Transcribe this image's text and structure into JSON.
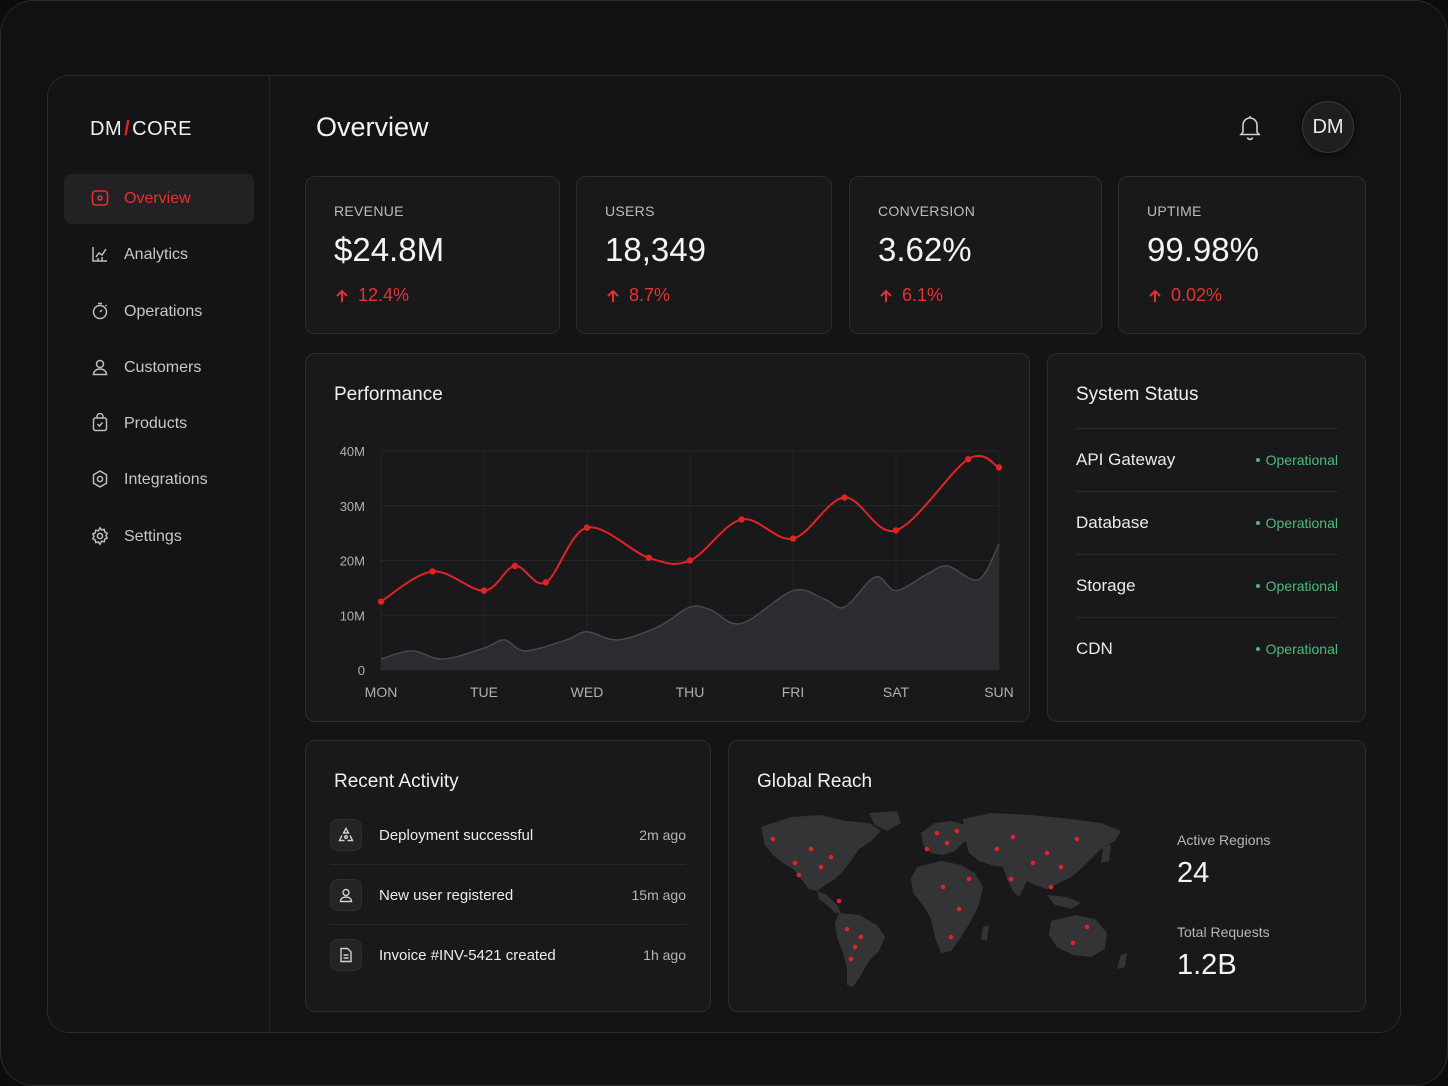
{
  "brand": {
    "left": "DM",
    "slash": "/",
    "right": "CORE"
  },
  "page_title": "Overview",
  "user": {
    "initials": "DM"
  },
  "nav": [
    {
      "label": "Overview",
      "icon": "overview-icon",
      "active": true
    },
    {
      "label": "Analytics",
      "icon": "analytics-icon"
    },
    {
      "label": "Operations",
      "icon": "operations-icon"
    },
    {
      "label": "Customers",
      "icon": "customers-icon"
    },
    {
      "label": "Products",
      "icon": "products-icon"
    },
    {
      "label": "Integrations",
      "icon": "integrations-icon"
    },
    {
      "label": "Settings",
      "icon": "settings-icon"
    }
  ],
  "kpis": [
    {
      "label": "REVENUE",
      "value": "$24.8M",
      "delta": "12.4%"
    },
    {
      "label": "USERS",
      "value": "18,349",
      "delta": "8.7%"
    },
    {
      "label": "CONVERSION",
      "value": "3.62%",
      "delta": "6.1%"
    },
    {
      "label": "UPTIME",
      "value": "99.98%",
      "delta": "0.02%"
    }
  ],
  "performance": {
    "title": "Performance"
  },
  "chart_data": {
    "type": "line",
    "x": [
      "MON",
      "TUE",
      "WED",
      "THU",
      "FRI",
      "SAT",
      "SUN"
    ],
    "y_ticks": [
      "0",
      "10M",
      "20M",
      "30M",
      "40M"
    ],
    "ylim": [
      0,
      40
    ],
    "series": [
      {
        "style": "line-with-markers",
        "color": "#e02424",
        "points": [
          [
            0,
            12.5
          ],
          [
            0.5,
            18
          ],
          [
            1,
            14.5
          ],
          [
            1.3,
            19
          ],
          [
            1.6,
            16
          ],
          [
            2,
            26
          ],
          [
            2.6,
            20.5
          ],
          [
            3,
            20
          ],
          [
            3.5,
            27.5
          ],
          [
            4,
            24
          ],
          [
            4.5,
            31.5
          ],
          [
            5,
            25.5
          ],
          [
            5.7,
            38.5
          ],
          [
            6,
            37
          ]
        ]
      },
      {
        "style": "area",
        "color": "#4a4a4f",
        "points": [
          [
            0,
            2
          ],
          [
            0.3,
            3.5
          ],
          [
            0.6,
            2
          ],
          [
            1,
            4
          ],
          [
            1.2,
            5.5
          ],
          [
            1.4,
            3.5
          ],
          [
            1.8,
            5.5
          ],
          [
            2,
            7
          ],
          [
            2.3,
            5.5
          ],
          [
            2.7,
            8
          ],
          [
            3,
            11.5
          ],
          [
            3.2,
            11
          ],
          [
            3.5,
            8.5
          ],
          [
            4,
            14.5
          ],
          [
            4.3,
            13
          ],
          [
            4.5,
            11.5
          ],
          [
            4.8,
            17
          ],
          [
            5,
            14.5
          ],
          [
            5.3,
            17.5
          ],
          [
            5.5,
            19
          ],
          [
            5.8,
            16.5
          ],
          [
            6,
            23
          ]
        ]
      }
    ]
  },
  "system_status": {
    "title": "System Status",
    "items": [
      {
        "name": "API Gateway",
        "status": "Operational"
      },
      {
        "name": "Database",
        "status": "Operational"
      },
      {
        "name": "Storage",
        "status": "Operational"
      },
      {
        "name": "CDN",
        "status": "Operational"
      }
    ],
    "status_color": "#4cbb7a"
  },
  "activity": {
    "title": "Recent Activity",
    "items": [
      {
        "icon": "deploy-icon",
        "text": "Deployment successful",
        "time": "2m ago"
      },
      {
        "icon": "user-icon",
        "text": "New user registered",
        "time": "15m ago"
      },
      {
        "icon": "document-icon",
        "text": "Invoice #INV-5421 created",
        "time": "1h ago"
      }
    ]
  },
  "global": {
    "title": "Global Reach",
    "active_regions_label": "Active Regions",
    "active_regions_value": "24",
    "total_requests_label": "Total Requests",
    "total_requests_value": "1.2B"
  },
  "colors": {
    "accent": "#e02424",
    "bg": "#141416",
    "card": "#19191b",
    "success": "#4cbb7a"
  }
}
